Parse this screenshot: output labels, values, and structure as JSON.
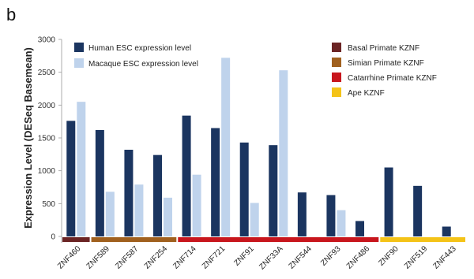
{
  "panel_label": "b",
  "chart_data": {
    "type": "bar",
    "ylabel": "Expression Level (DESeq Basemean)",
    "ylim": [
      0,
      3000
    ],
    "yticks": [
      0,
      500,
      1000,
      1500,
      2000,
      2500,
      3000
    ],
    "categories": [
      "ZNF460",
      "ZNF589",
      "ZNF587",
      "ZNF254",
      "ZNF714",
      "ZNF721",
      "ZNF91",
      "ZNF33A",
      "ZNF544",
      "ZNF93",
      "ZNF486",
      "ZNF90",
      "ZNF519",
      "ZNF443"
    ],
    "series": [
      {
        "name": "Human ESC expression level",
        "color": "#1b3560",
        "values": [
          1760,
          1620,
          1320,
          1240,
          1840,
          1650,
          1430,
          1390,
          670,
          630,
          235,
          1050,
          770,
          150
        ]
      },
      {
        "name": "Macaque ESC expression level",
        "color": "#bfd3ec",
        "values": [
          2050,
          680,
          790,
          590,
          940,
          2720,
          510,
          2530,
          null,
          400,
          null,
          null,
          null,
          null
        ]
      }
    ],
    "groups": [
      {
        "name": "Basal Primate KZNF",
        "color": "#6b2424",
        "start": 0,
        "end": 0
      },
      {
        "name": "Simian Primate KZNF",
        "color": "#a0601e",
        "start": 1,
        "end": 3
      },
      {
        "name": "Catarrhine Primate KZNF",
        "color": "#c8161d",
        "start": 4,
        "end": 10
      },
      {
        "name": "Ape KZNF",
        "color": "#f4c318",
        "start": 11,
        "end": 13
      }
    ],
    "legend_position": "top"
  }
}
